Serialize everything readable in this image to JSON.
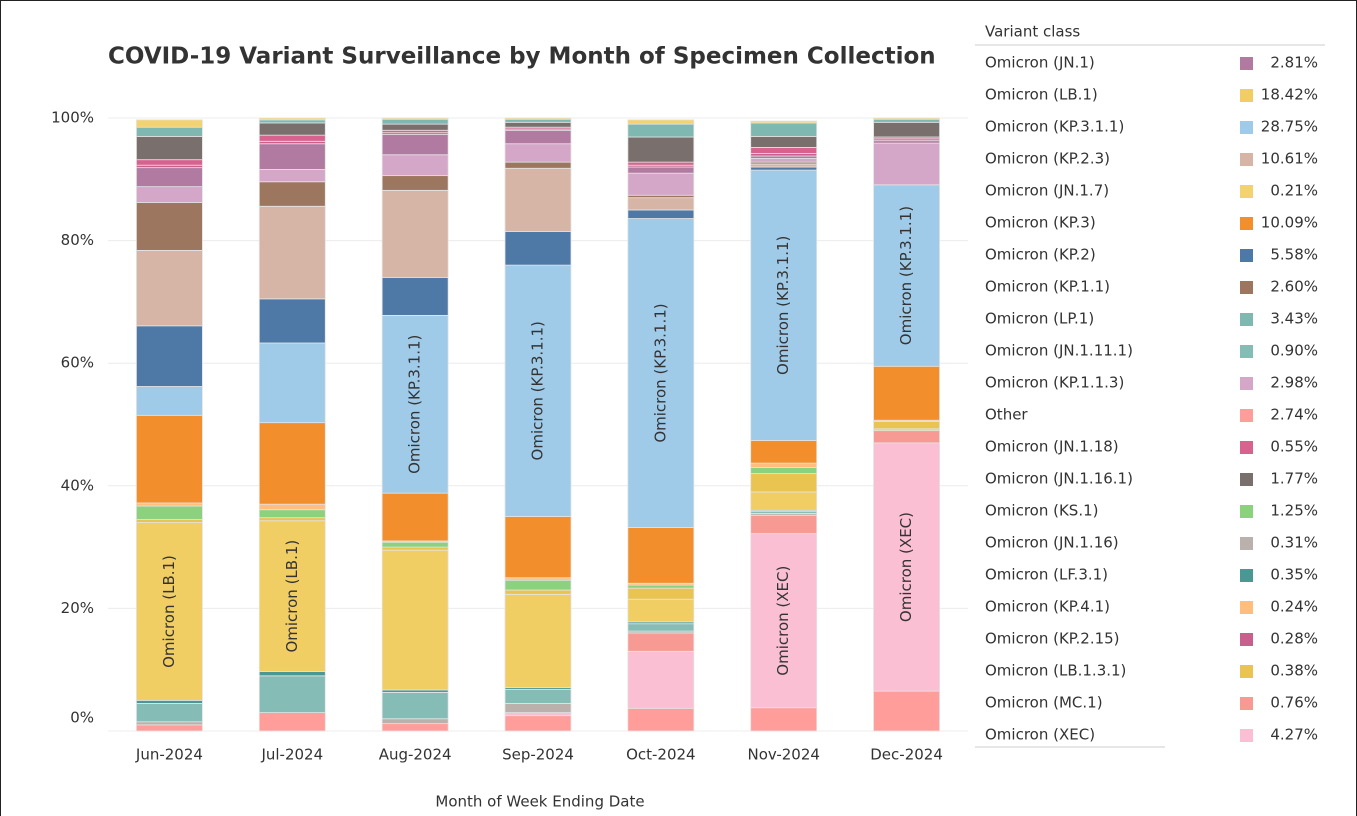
{
  "chart_data": {
    "type": "stacked_bar",
    "title": "COVID-19 Variant Surveillance by Month of Specimen Collection",
    "x_label": "Month of Week Ending Date",
    "legend_title": "Variant class",
    "categories": [
      "Jun-2024",
      "Jul-2024",
      "Aug-2024",
      "Sep-2024",
      "Oct-2024",
      "Nov-2024",
      "Dec-2024"
    ],
    "ylim": [
      0,
      100
    ],
    "yticks": [
      {
        "value": 0,
        "label": "0%"
      },
      {
        "value": 20,
        "label": "20%"
      },
      {
        "value": 40,
        "label": "40%"
      },
      {
        "value": 60,
        "label": "60%"
      },
      {
        "value": 80,
        "label": "80%"
      },
      {
        "value": 100,
        "label": "100%"
      }
    ],
    "grid": true,
    "series": [
      {
        "name": "Other",
        "color": "#ff9d9a",
        "values": [
          1.0,
          3.0,
          1.2,
          2.5,
          3.7,
          3.8,
          6.5
        ]
      },
      {
        "name": "Omicron (XEC)",
        "color": "#fabfd2",
        "values": [
          0,
          0,
          0,
          0.5,
          9.3,
          28.4,
          40.5
        ],
        "segment_labels": [
          null,
          null,
          null,
          null,
          null,
          "Omicron (XEC)",
          "Omicron (XEC)"
        ]
      },
      {
        "name": "Omicron (MC.1)",
        "color": "#f89a94",
        "values": [
          0,
          0,
          0,
          0,
          3.0,
          3.0,
          2.0
        ]
      },
      {
        "name": "Omicron (JN.1.16)",
        "color": "#bab0ac",
        "values": [
          0.5,
          0,
          0.8,
          1.5,
          0.3,
          0.3,
          0
        ]
      },
      {
        "name": "Omicron (JN.1.11.1)",
        "color": "#86bcb6",
        "values": [
          3.0,
          6.0,
          4.3,
          2.3,
          1.2,
          0.3,
          0
        ]
      },
      {
        "name": "Omicron (LF.3.1)",
        "color": "#499894",
        "values": [
          0.5,
          0.7,
          0.4,
          0.3,
          0.3,
          0.2,
          0
        ]
      },
      {
        "name": "Omicron (LB.1)",
        "color": "#f1ce63",
        "values": [
          29.0,
          24.6,
          22.8,
          15.2,
          3.7,
          3.0,
          0.3
        ],
        "segment_labels": [
          "Omicron (LB.1)",
          "Omicron (LB.1)",
          null,
          null,
          null,
          null,
          null
        ]
      },
      {
        "name": "Omicron (LB.1.3.1)",
        "color": "#eac451",
        "values": [
          0.5,
          0.5,
          0.5,
          0.7,
          1.8,
          3.0,
          1.2
        ]
      },
      {
        "name": "Omicron (KS.1)",
        "color": "#8cd17d",
        "values": [
          2.2,
          1.3,
          0.8,
          1.6,
          0.5,
          1.0,
          0
        ]
      },
      {
        "name": "Omicron (KP.4.1)",
        "color": "#ffbe7d",
        "values": [
          0.5,
          0.9,
          0.2,
          0.4,
          0.3,
          0.7,
          0.2
        ]
      },
      {
        "name": "Omicron (KP.3)",
        "color": "#f28e2b",
        "values": [
          14.3,
          13.3,
          7.8,
          10.0,
          9.1,
          3.7,
          8.8
        ]
      },
      {
        "name": "Omicron (KP.3.1.1)",
        "color": "#a0cbe8",
        "values": [
          4.7,
          13.0,
          29.0,
          41.0,
          50.4,
          44.1,
          29.6
        ],
        "segment_labels": [
          null,
          null,
          "Omicron (KP.3.1.1)",
          "Omicron (KP.3.1.1)",
          "Omicron (KP.3.1.1)",
          "Omicron (KP.3.1.1)",
          "Omicron (KP.3.1.1)"
        ]
      },
      {
        "name": "Omicron (KP.2)",
        "color": "#4e79a7",
        "values": [
          9.9,
          7.2,
          6.2,
          5.5,
          1.4,
          0.5,
          0
        ]
      },
      {
        "name": "Omicron (KP.2.3)",
        "color": "#d7b5a6",
        "values": [
          12.3,
          15.1,
          14.2,
          10.3,
          2.0,
          0.5,
          0
        ]
      },
      {
        "name": "Omicron (KP.1.1)",
        "color": "#9d7660",
        "values": [
          7.8,
          4.0,
          2.4,
          1.0,
          0.4,
          0.3,
          0
        ]
      },
      {
        "name": "Omicron (KP.1.1.3)",
        "color": "#d4a6c8",
        "values": [
          2.6,
          2.0,
          3.4,
          3.0,
          3.6,
          0.6,
          6.8
        ]
      },
      {
        "name": "Omicron (JN.1)",
        "color": "#b07aa1",
        "values": [
          3.1,
          4.2,
          3.3,
          2.2,
          1.0,
          0.4,
          0.4
        ]
      },
      {
        "name": "Omicron (KP.2.15)",
        "color": "#c8608e",
        "values": [
          0.4,
          0.4,
          0.3,
          0.2,
          0.3,
          0.4,
          0.3
        ]
      },
      {
        "name": "Omicron (JN.1.18)",
        "color": "#d7628e",
        "values": [
          0.9,
          1.0,
          0.4,
          0.3,
          0.5,
          1.0,
          0.3
        ]
      },
      {
        "name": "Omicron (JN.1.16.1)",
        "color": "#79706e",
        "values": [
          3.8,
          2.0,
          1.0,
          0.8,
          4.1,
          1.8,
          2.4
        ]
      },
      {
        "name": "Omicron (LP.1)",
        "color": "#7fb8b0",
        "values": [
          1.5,
          0.5,
          0.8,
          0.5,
          2.1,
          2.2,
          0.5
        ]
      },
      {
        "name": "Omicron (JN.1.7)",
        "color": "#f3d36f",
        "values": [
          1.2,
          0.3,
          0.2,
          0.2,
          0.7,
          0.3,
          0.2
        ]
      }
    ],
    "legend": [
      {
        "name": "Omicron (JN.1)",
        "color": "#b07aa1",
        "share_label": "2.81%"
      },
      {
        "name": "Omicron (LB.1)",
        "color": "#f1ce63",
        "share_label": "18.42%"
      },
      {
        "name": "Omicron (KP.3.1.1)",
        "color": "#a0cbe8",
        "share_label": "28.75%"
      },
      {
        "name": "Omicron (KP.2.3)",
        "color": "#d7b5a6",
        "share_label": "10.61%"
      },
      {
        "name": "Omicron (JN.1.7)",
        "color": "#f3d36f",
        "share_label": "0.21%"
      },
      {
        "name": "Omicron (KP.3)",
        "color": "#f28e2b",
        "share_label": "10.09%"
      },
      {
        "name": "Omicron (KP.2)",
        "color": "#4e79a7",
        "share_label": "5.58%"
      },
      {
        "name": "Omicron (KP.1.1)",
        "color": "#9d7660",
        "share_label": "2.60%"
      },
      {
        "name": "Omicron (LP.1)",
        "color": "#7fb8b0",
        "share_label": "3.43%"
      },
      {
        "name": "Omicron (JN.1.11.1)",
        "color": "#86bcb6",
        "share_label": "0.90%"
      },
      {
        "name": "Omicron (KP.1.1.3)",
        "color": "#d4a6c8",
        "share_label": "2.98%"
      },
      {
        "name": "Other",
        "color": "#ff9d9a",
        "share_label": "2.74%"
      },
      {
        "name": "Omicron (JN.1.18)",
        "color": "#d7628e",
        "share_label": "0.55%"
      },
      {
        "name": "Omicron (JN.1.16.1)",
        "color": "#79706e",
        "share_label": "1.77%"
      },
      {
        "name": "Omicron (KS.1)",
        "color": "#8cd17d",
        "share_label": "1.25%"
      },
      {
        "name": "Omicron (JN.1.16)",
        "color": "#bab0ac",
        "share_label": "0.31%"
      },
      {
        "name": "Omicron (LF.3.1)",
        "color": "#499894",
        "share_label": "0.35%"
      },
      {
        "name": "Omicron (KP.4.1)",
        "color": "#ffbe7d",
        "share_label": "0.24%"
      },
      {
        "name": "Omicron (KP.2.15)",
        "color": "#c8608e",
        "share_label": "0.28%"
      },
      {
        "name": "Omicron (LB.1.3.1)",
        "color": "#eac451",
        "share_label": "0.38%"
      },
      {
        "name": "Omicron (MC.1)",
        "color": "#f89a94",
        "share_label": "0.76%"
      },
      {
        "name": "Omicron (XEC)",
        "color": "#fabfd2",
        "share_label": "4.27%"
      }
    ]
  }
}
